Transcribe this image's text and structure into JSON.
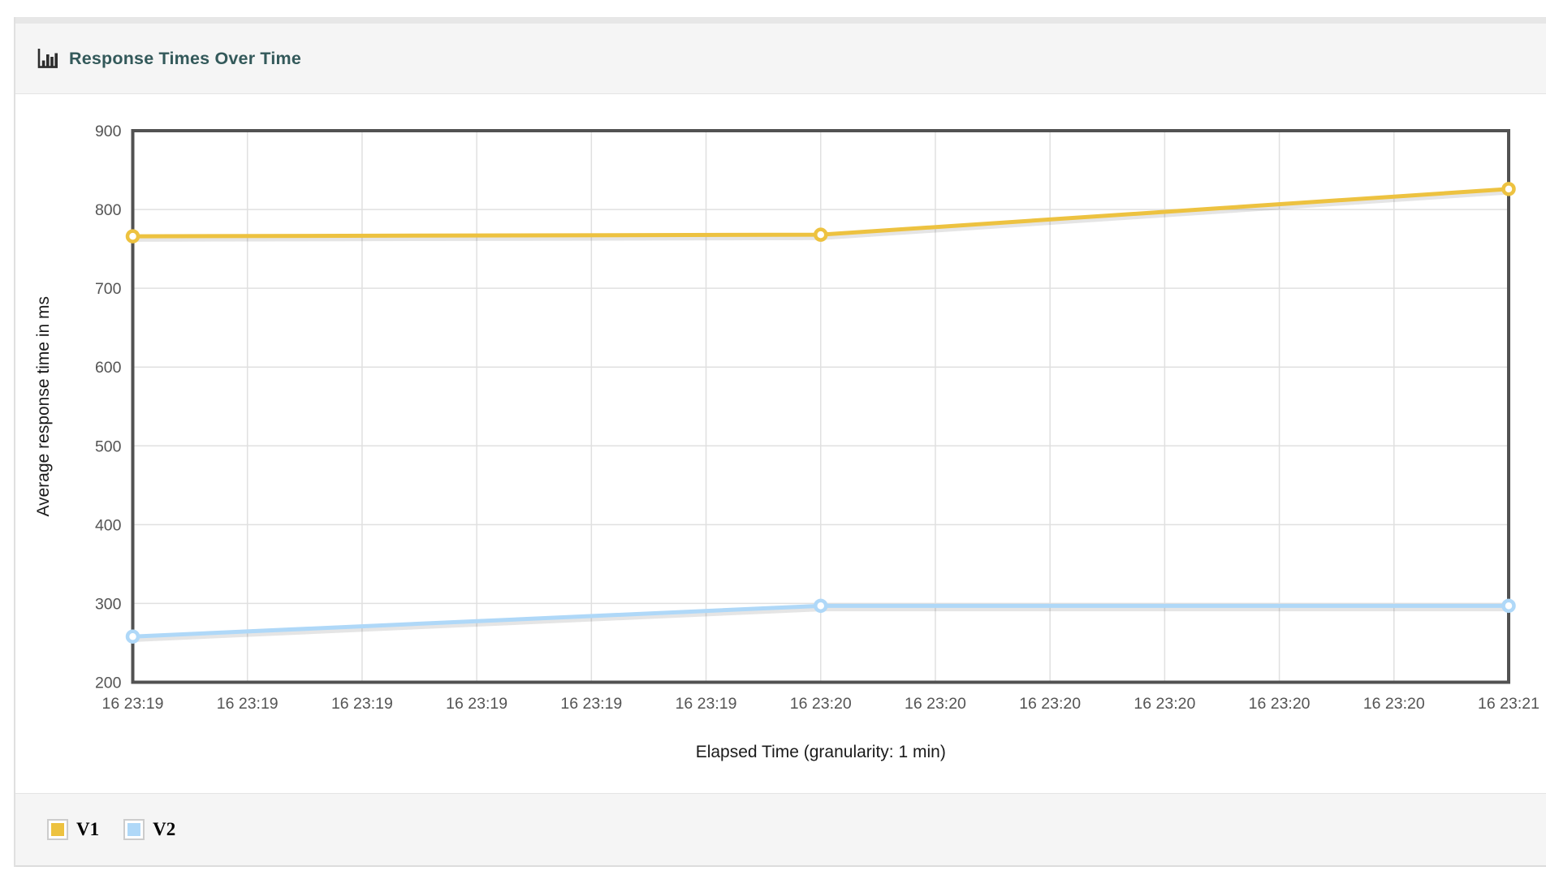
{
  "panel": {
    "title": "Response Times Over Time",
    "icon": "bar-chart-icon"
  },
  "chart_data": {
    "type": "line",
    "title": "Response Times Over Time",
    "xlabel": "Elapsed Time (granularity: 1 min)",
    "ylabel": "Average response time in ms",
    "ylim": [
      200,
      900
    ],
    "y_ticks": [
      200,
      300,
      400,
      500,
      600,
      700,
      800,
      900
    ],
    "x_ticks": [
      "16 23:19",
      "16 23:19",
      "16 23:19",
      "16 23:19",
      "16 23:19",
      "16 23:19",
      "16 23:20",
      "16 23:20",
      "16 23:20",
      "16 23:20",
      "16 23:20",
      "16 23:20",
      "16 23:21"
    ],
    "grid": true,
    "legend_position": "bottom",
    "series": [
      {
        "name": "V1",
        "color": "#edc240",
        "tick_indices": [
          0,
          6,
          12
        ],
        "values": [
          766,
          768,
          826
        ]
      },
      {
        "name": "V2",
        "color": "#afd8f8",
        "tick_indices": [
          0,
          6,
          12
        ],
        "values": [
          258,
          297,
          297
        ]
      }
    ]
  },
  "legend": {
    "items": [
      {
        "label": "V1",
        "color": "#edc240"
      },
      {
        "label": "V2",
        "color": "#afd8f8"
      }
    ]
  },
  "colors": {
    "title_text": "#33595a",
    "plot_border": "#525252",
    "grid_line": "#e0e0e0",
    "tick_label": "#545454",
    "axis_title_text": "#1a1a1a",
    "shadow": "rgba(0,0,0,0.10)"
  }
}
